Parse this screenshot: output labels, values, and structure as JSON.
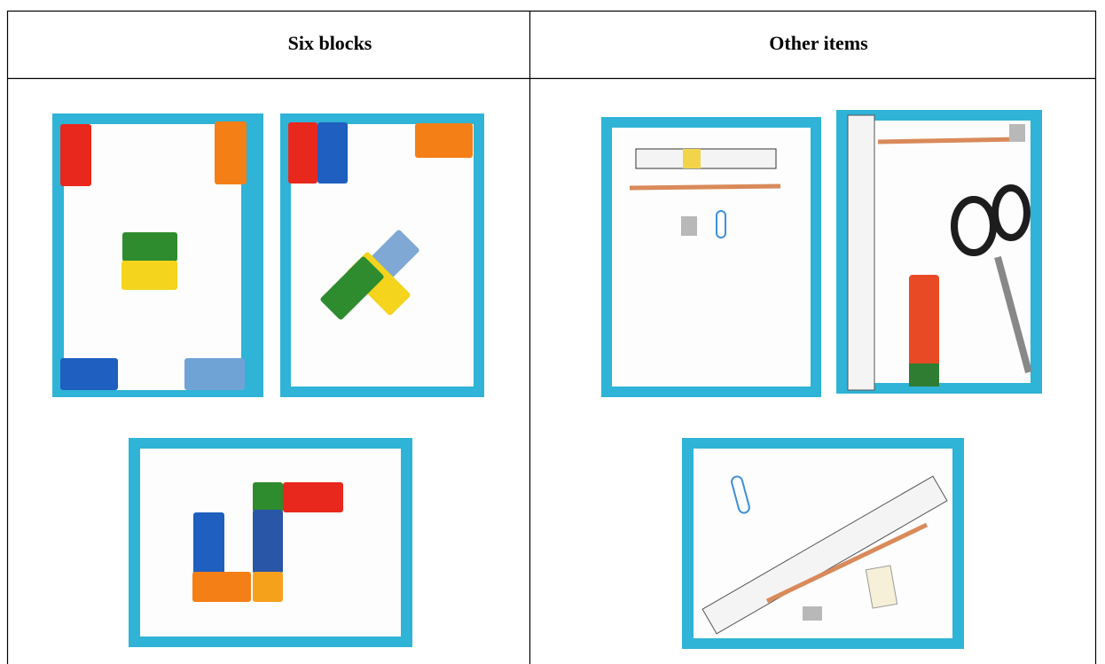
{
  "table": {
    "headers": [
      "Six blocks",
      "Other items"
    ]
  }
}
